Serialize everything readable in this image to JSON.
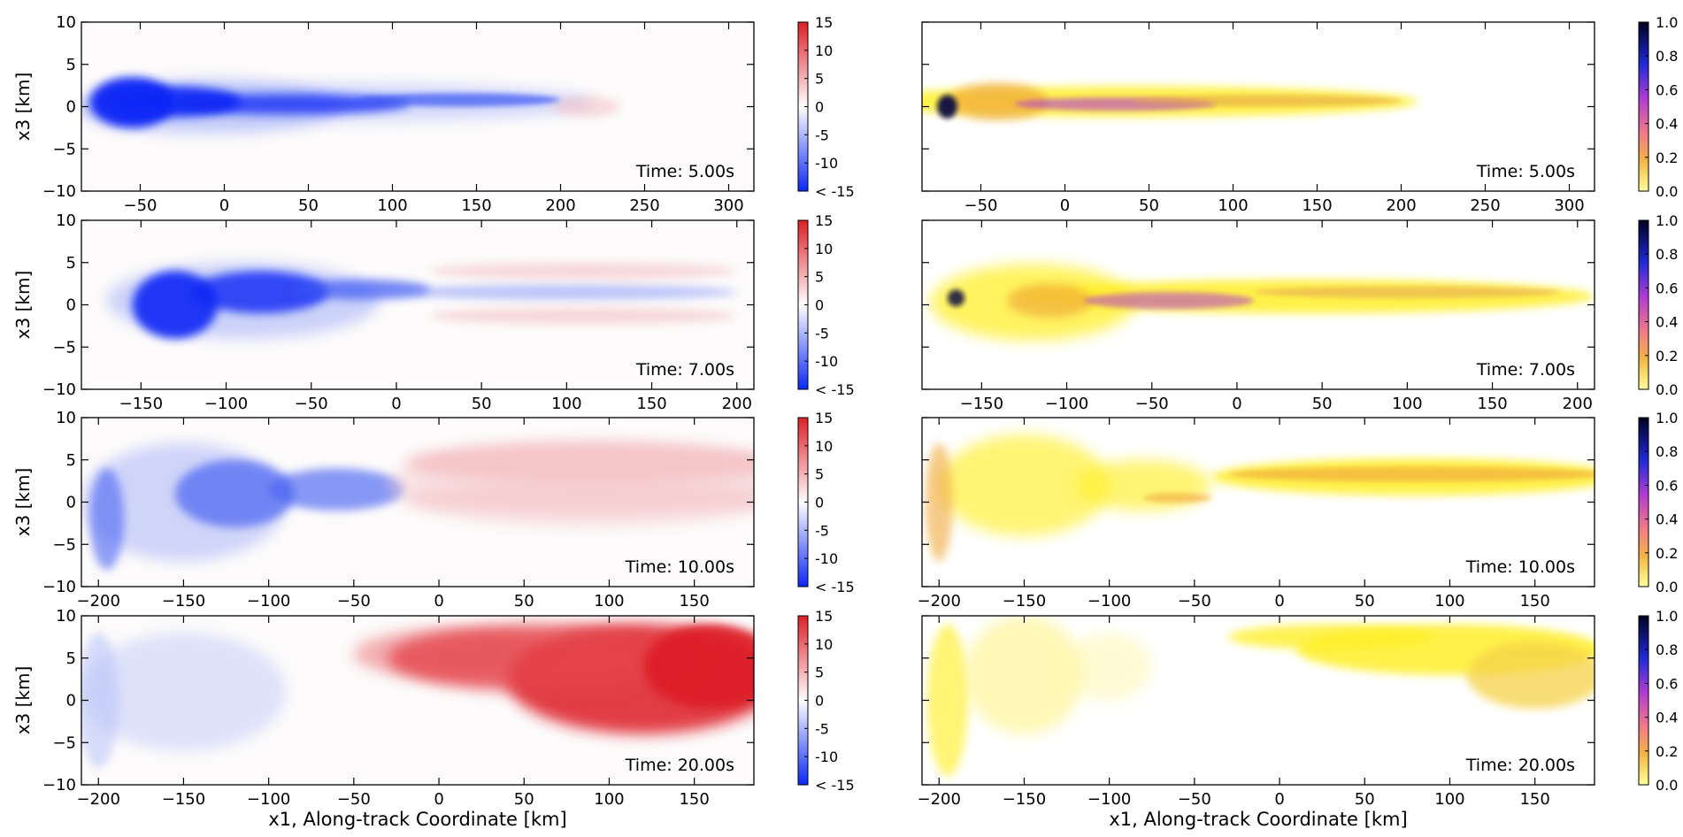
{
  "figure": {
    "left_cbar_ticks": [
      "15",
      "10",
      "5",
      "0",
      "-5",
      "-10",
      "< -15"
    ],
    "right_cbar_ticks": [
      "1.0",
      "0.8",
      "0.6",
      "0.4",
      "0.2",
      "0.0"
    ]
  },
  "colors": {
    "blue": "#0a28f5",
    "red": "#dd1f26",
    "yellow": "#ffef2a",
    "orange": "#f0a83a",
    "magenta": "#b23bd0",
    "navy": "#101040"
  },
  "chart_data": [
    {
      "type": "heatmap",
      "panel": "left",
      "row": 0,
      "title": "Time: 5.00s",
      "ylabel": "x3  [km]",
      "xlabel": "",
      "ylim": [
        -10,
        10
      ],
      "xlim": [
        -85,
        315
      ],
      "xticks": [
        -50,
        0,
        50,
        100,
        150,
        200,
        250,
        300
      ],
      "yticks": [
        10,
        5,
        0,
        -5,
        -10
      ],
      "colorbar": {
        "range": [
          -15,
          15
        ],
        "ticks": [
          "15",
          "10",
          "5",
          "0",
          "-5",
          "-10",
          "< -15"
        ]
      },
      "features": "strong negative (blue) plume core from -75 to 200 km; weak positive near 200-230 km"
    },
    {
      "type": "heatmap",
      "panel": "right",
      "row": 0,
      "title": "Time: 5.00s",
      "ylabel": "",
      "xlabel": "",
      "ylim": [
        -10,
        10
      ],
      "xlim": [
        -85,
        315
      ],
      "xticks": [
        -50,
        0,
        50,
        100,
        150,
        200,
        250,
        300
      ],
      "yticks": [],
      "colorbar": {
        "range": [
          0,
          1
        ],
        "ticks": [
          "1.0",
          "0.8",
          "0.6",
          "0.4",
          "0.2",
          "0.0"
        ]
      },
      "features": "yellow/orange plume to ~215 km, high values (dark) near -75 km"
    },
    {
      "type": "heatmap",
      "panel": "left",
      "row": 1,
      "title": "Time: 7.00s",
      "ylabel": "x3  [km]",
      "xlabel": "",
      "ylim": [
        -10,
        10
      ],
      "xlim": [
        -185,
        210
      ],
      "xticks": [
        -150,
        -100,
        -50,
        0,
        50,
        100,
        150,
        200
      ],
      "yticks": [
        10,
        5,
        0,
        -5,
        -10
      ],
      "colorbar": {
        "range": [
          -15,
          15
        ],
        "ticks": [
          "15",
          "10",
          "5",
          "0",
          "-5",
          "-10",
          "< -15"
        ]
      },
      "features": "blue turbulent region -170 to 0 km, light red bands beyond 50 km"
    },
    {
      "type": "heatmap",
      "panel": "right",
      "row": 1,
      "title": "Time: 7.00s",
      "ylabel": "",
      "xlabel": "",
      "ylim": [
        -10,
        10
      ],
      "xlim": [
        -185,
        210
      ],
      "xticks": [
        -150,
        -100,
        -50,
        0,
        50,
        100,
        150,
        200
      ],
      "yticks": [],
      "colorbar": {
        "range": [
          0,
          1
        ],
        "ticks": [
          "1.0",
          "0.8",
          "0.6",
          "0.4",
          "0.2",
          "0.0"
        ]
      },
      "features": "yellow plume with magenta core from -170 to 205 km"
    },
    {
      "type": "heatmap",
      "panel": "left",
      "row": 2,
      "title": "Time: 10.00s",
      "ylabel": "x3  [km]",
      "xlabel": "",
      "ylim": [
        -10,
        10
      ],
      "xlim": [
        -210,
        185
      ],
      "xticks": [
        -200,
        -150,
        -100,
        -50,
        0,
        50,
        100,
        150
      ],
      "yticks": [
        10,
        5,
        0,
        -5,
        -10
      ],
      "colorbar": {
        "range": [
          -15,
          15
        ],
        "ticks": [
          "15",
          "10",
          "5",
          "0",
          "-5",
          "-10",
          "< -15"
        ]
      },
      "features": "blue turbulent left of -30 km, broad light red region to the right"
    },
    {
      "type": "heatmap",
      "panel": "right",
      "row": 2,
      "title": "Time: 10.00s",
      "ylabel": "",
      "xlabel": "",
      "ylim": [
        -10,
        10
      ],
      "xlim": [
        -210,
        185
      ],
      "xticks": [
        -200,
        -150,
        -100,
        -50,
        0,
        50,
        100,
        150
      ],
      "yticks": [],
      "colorbar": {
        "range": [
          0,
          1
        ],
        "ticks": [
          "1.0",
          "0.8",
          "0.6",
          "0.4",
          "0.2",
          "0.0"
        ]
      },
      "features": "yellow patches left, orange band from -30 to 185 km"
    },
    {
      "type": "heatmap",
      "panel": "left",
      "row": 3,
      "title": "Time: 20.00s",
      "ylabel": "x3  [km]",
      "xlabel": "x1, Along-track Coordinate [km]",
      "ylim": [
        -10,
        10
      ],
      "xlim": [
        -210,
        185
      ],
      "xticks": [
        -200,
        -150,
        -100,
        -50,
        0,
        50,
        100,
        150
      ],
      "yticks": [
        10,
        5,
        0,
        -5,
        -10
      ],
      "colorbar": {
        "range": [
          -15,
          15
        ],
        "ticks": [
          "15",
          "10",
          "5",
          "0",
          "-5",
          "-10",
          "< -15"
        ]
      },
      "features": "faint blue left, strong red wedge from -50 to 185 km"
    },
    {
      "type": "heatmap",
      "panel": "right",
      "row": 3,
      "title": "Time: 20.00s",
      "ylabel": "",
      "xlabel": "x1, Along-track Coordinate [km]",
      "ylim": [
        -10,
        10
      ],
      "xlim": [
        -210,
        185
      ],
      "xticks": [
        -200,
        -150,
        -100,
        -50,
        0,
        50,
        100,
        150
      ],
      "yticks": [],
      "colorbar": {
        "range": [
          0,
          1
        ],
        "ticks": [
          "1.0",
          "0.8",
          "0.6",
          "0.4",
          "0.2",
          "0.0"
        ]
      },
      "features": "pale yellow plumes left, yellow/orange wedge top right"
    }
  ]
}
